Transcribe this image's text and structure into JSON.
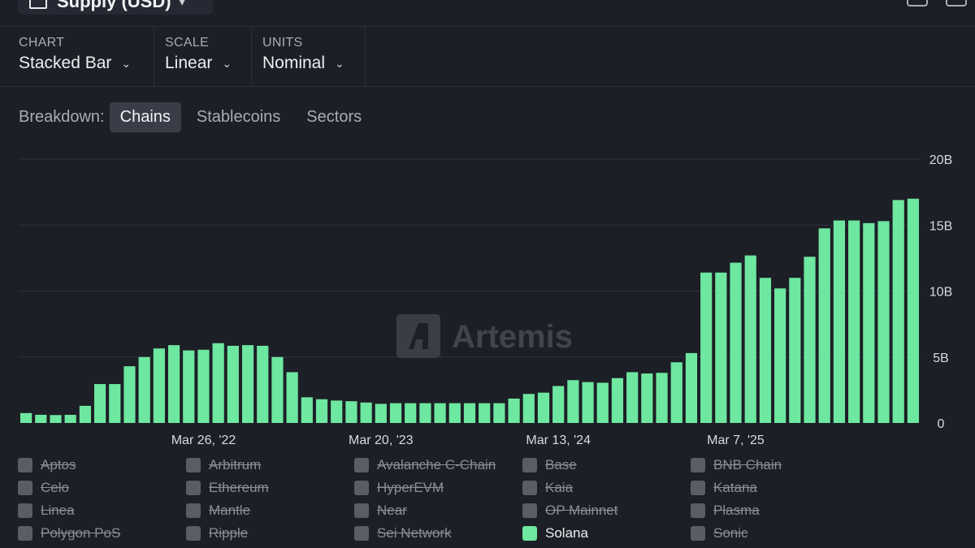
{
  "header": {
    "metric_label": "Supply (USD)"
  },
  "controls": [
    {
      "caption": "CHART",
      "value": "Stacked Bar"
    },
    {
      "caption": "SCALE",
      "value": "Linear"
    },
    {
      "caption": "UNITS",
      "value": "Nominal"
    }
  ],
  "breakdown": {
    "label": "Breakdown:",
    "tabs": [
      "Chains",
      "Stablecoins",
      "Sectors"
    ],
    "active": "Chains"
  },
  "watermark": "Artemis",
  "colors": {
    "bar": "#6ee7a0",
    "grid": "#2f323b",
    "background": "#1d1f26"
  },
  "chart_data": {
    "type": "bar",
    "stacked": true,
    "title": "",
    "xlabel": "",
    "ylabel": "",
    "ylim": [
      0,
      20
    ],
    "y_unit": "B",
    "y_ticks": [
      "0",
      "5B",
      "10B",
      "15B",
      "20B"
    ],
    "y_tick_values": [
      0,
      5,
      10,
      15,
      20
    ],
    "x_tick_labels": [
      "Mar 26, '22",
      "Mar 20, '23",
      "Mar 13, '24",
      "Mar 7, '25"
    ],
    "x_tick_bar_index": [
      12,
      24,
      36,
      48
    ],
    "grid": true,
    "series": [
      {
        "name": "Solana",
        "values": [
          0.75,
          0.62,
          0.6,
          0.62,
          1.3,
          2.95,
          2.95,
          4.3,
          5.0,
          5.65,
          5.9,
          5.5,
          5.55,
          6.05,
          5.85,
          5.9,
          5.85,
          5.0,
          3.85,
          1.95,
          1.8,
          1.7,
          1.65,
          1.55,
          1.45,
          1.5,
          1.5,
          1.5,
          1.5,
          1.5,
          1.5,
          1.5,
          1.5,
          1.85,
          2.2,
          2.3,
          2.8,
          3.25,
          3.1,
          3.05,
          3.4,
          3.85,
          3.75,
          3.8,
          4.6,
          5.3,
          11.4,
          11.4,
          12.15,
          12.7,
          11.0,
          10.2,
          11.0,
          12.6,
          14.75,
          15.35,
          15.35,
          15.15,
          15.3,
          16.9,
          17.0
        ]
      }
    ]
  },
  "legend": [
    {
      "label": "Aptos",
      "on": false
    },
    {
      "label": "Arbitrum",
      "on": false
    },
    {
      "label": "Avalanche C-Chain",
      "on": false
    },
    {
      "label": "Base",
      "on": false
    },
    {
      "label": "BNB Chain",
      "on": false
    },
    {
      "label": "Celo",
      "on": false
    },
    {
      "label": "Ethereum",
      "on": false
    },
    {
      "label": "HyperEVM",
      "on": false
    },
    {
      "label": "Kaia",
      "on": false
    },
    {
      "label": "Katana",
      "on": false
    },
    {
      "label": "Linea",
      "on": false
    },
    {
      "label": "Mantle",
      "on": false
    },
    {
      "label": "Near",
      "on": false
    },
    {
      "label": "OP Mainnet",
      "on": false
    },
    {
      "label": "Plasma",
      "on": false
    },
    {
      "label": "Polygon PoS",
      "on": false
    },
    {
      "label": "Ripple",
      "on": false
    },
    {
      "label": "Sei Network",
      "on": false
    },
    {
      "label": "Solana",
      "on": true
    },
    {
      "label": "Sonic",
      "on": false
    }
  ]
}
